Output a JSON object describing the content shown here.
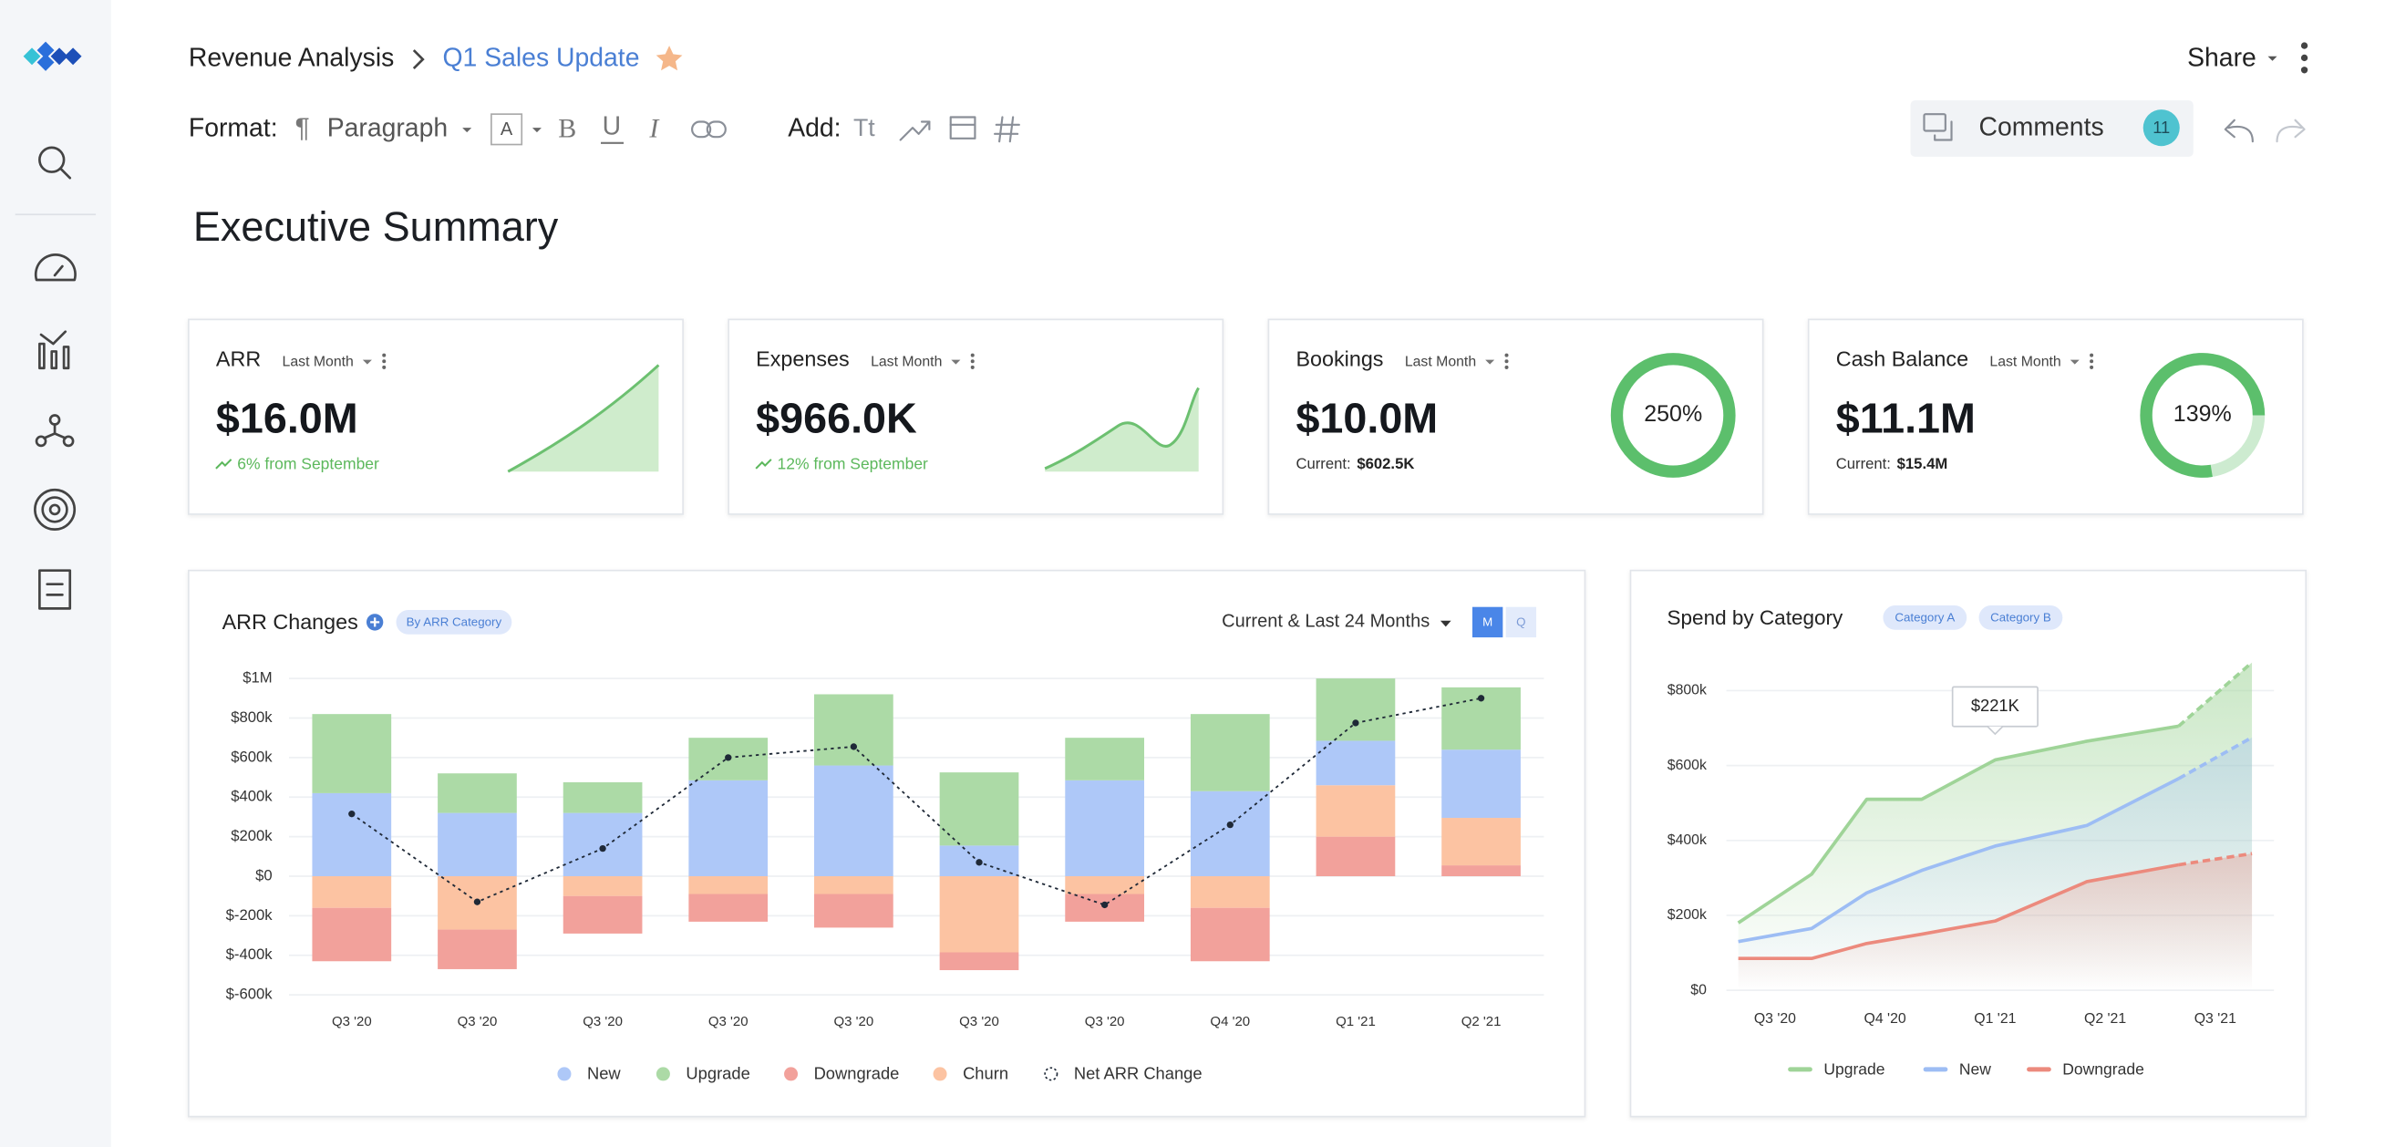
{
  "header": {
    "breadcrumb": "Revenue Analysis",
    "title": "Q1 Sales Update",
    "share": "Share"
  },
  "toolbar": {
    "format_label": "Format:",
    "pilcrow": "¶",
    "paragraph": "Paragraph",
    "font_color": "A",
    "bold": "B",
    "underline": "U",
    "italic": "I",
    "add_label": "Add:",
    "text_style": "Tt",
    "comments": "Comments",
    "comment_count": 11
  },
  "heading": "Executive Summary",
  "kpis": [
    {
      "title": "ARR",
      "period": "Last Month",
      "value": "$16.0M",
      "change": "6% from September"
    },
    {
      "title": "Expenses",
      "period": "Last Month",
      "value": "$966.0K",
      "change": "12% from September"
    },
    {
      "title": "Bookings",
      "period": "Last Month",
      "value": "$10.0M",
      "current_label": "Current:",
      "current": "$602.5K",
      "gauge": "250%"
    },
    {
      "title": "Cash Balance",
      "period": "Last Month",
      "value": "$11.1M",
      "current_label": "Current:",
      "current": "$15.4M",
      "gauge": "139%"
    }
  ],
  "arr_changes": {
    "type": "bar",
    "stacked": true,
    "title": "ARR Changes",
    "filter": "By ARR Category",
    "range": "Current & Last 24 Months",
    "toggles": [
      "M",
      "Q"
    ],
    "categories": [
      "Q3 '20",
      "Q3 '20",
      "Q3 '20",
      "Q3 '20",
      "Q3 '20",
      "Q3 '20",
      "Q3 '20",
      "Q4 '20",
      "Q1 '21",
      "Q2 '21"
    ],
    "series": [
      {
        "name": "New",
        "color": "#aec8f8",
        "values": [
          420000,
          320000,
          320000,
          485000,
          560000,
          155000,
          485000,
          430000,
          225000,
          345000
        ]
      },
      {
        "name": "Upgrade",
        "color": "#acdaa6",
        "values": [
          400000,
          200000,
          155000,
          215000,
          360000,
          370000,
          215000,
          390000,
          315000,
          315000
        ]
      },
      {
        "name": "Downgrade",
        "color": "#f2a19b",
        "values": [
          -270000,
          -200000,
          -190000,
          -140000,
          -170000,
          -90000,
          -140000,
          -270000,
          200000,
          55000
        ]
      },
      {
        "name": "Churn",
        "color": "#fcc3a2",
        "values": [
          -160000,
          -270000,
          -100000,
          -90000,
          -90000,
          -385000,
          -90000,
          -160000,
          260000,
          240000
        ]
      },
      {
        "name": "Net ARR Change",
        "type": "line",
        "color": "#1f2937",
        "values": [
          315000,
          -130000,
          140000,
          600000,
          655000,
          70000,
          -145000,
          260000,
          775000,
          900000
        ]
      }
    ],
    "ylim": [
      -600000,
      1000000
    ],
    "yticks": [
      {
        "value": 1000000,
        "label": "$1M"
      },
      {
        "value": 800000,
        "label": "$800k"
      },
      {
        "value": 600000,
        "label": "$600k"
      },
      {
        "value": 400000,
        "label": "$400k"
      },
      {
        "value": 200000,
        "label": "$200k"
      },
      {
        "value": 0,
        "label": "$0"
      },
      {
        "value": -200000,
        "label": "$-200k"
      },
      {
        "value": -400000,
        "label": "$-400k"
      },
      {
        "value": -600000,
        "label": "$-600k"
      }
    ],
    "grid": true
  },
  "spend_by_category": {
    "type": "line",
    "title": "Spend by Category",
    "filters": [
      "Category A",
      "Category B"
    ],
    "x": [
      -1,
      1,
      2.5,
      4,
      6,
      8.5,
      11,
      13
    ],
    "series": [
      {
        "name": "Upgrade",
        "color": "#9fd498",
        "values": [
          180000,
          310000,
          510000,
          510000,
          615000,
          665000,
          705000,
          875000
        ]
      },
      {
        "name": "New",
        "color": "#9dbdf4",
        "values": [
          130000,
          165000,
          260000,
          320000,
          385000,
          440000,
          565000,
          675000
        ]
      },
      {
        "name": "Downgrade",
        "color": "#ec8a7d",
        "values": [
          85000,
          85000,
          125000,
          150000,
          185000,
          290000,
          335000,
          365000
        ]
      }
    ],
    "dashed_from": 6,
    "annotation": {
      "x": 6,
      "label": "$221K"
    },
    "xlim": [
      -1.2,
      13.6
    ],
    "xticks": [
      {
        "value": 0,
        "label": "Q3 '20"
      },
      {
        "value": 3,
        "label": "Q4 '20"
      },
      {
        "value": 6,
        "label": "Q1 '21"
      },
      {
        "value": 9,
        "label": "Q2 '21"
      },
      {
        "value": 12,
        "label": "Q3 '21"
      }
    ],
    "ylim": [
      0,
      870000
    ],
    "yticks": [
      {
        "value": 0,
        "label": "$0"
      },
      {
        "value": 200000,
        "label": "$200k"
      },
      {
        "value": 400000,
        "label": "$400k"
      },
      {
        "value": 600000,
        "label": "$600k"
      },
      {
        "value": 800000,
        "label": "$800k"
      }
    ],
    "grid": true
  }
}
